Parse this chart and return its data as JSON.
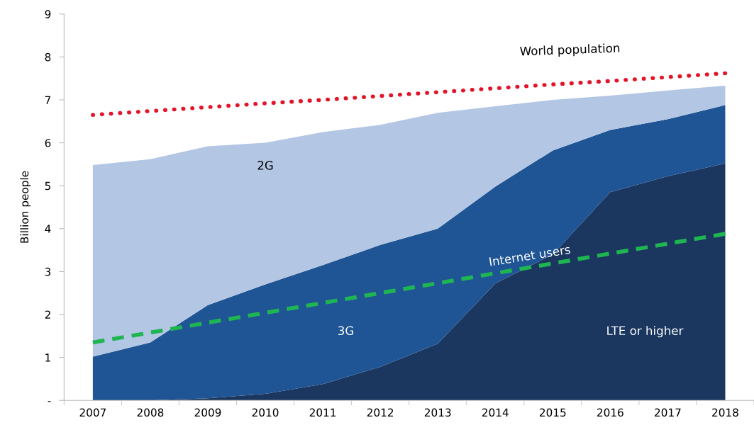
{
  "chart_data": {
    "type": "area",
    "stacked": true,
    "ylabel": "Billion people",
    "categories": [
      "2007",
      "2008",
      "2009",
      "2010",
      "2011",
      "2012",
      "2013",
      "2014",
      "2015",
      "2016",
      "2017",
      "2018"
    ],
    "series": [
      {
        "name": "LTE or higher",
        "color": "#1b375f",
        "values": [
          0,
          0,
          0.05,
          0.15,
          0.38,
          0.78,
          1.32,
          2.72,
          3.4,
          4.85,
          5.22,
          5.52
        ]
      },
      {
        "name": "3G",
        "color": "#1f5595",
        "values": [
          1.02,
          1.35,
          2.17,
          2.55,
          2.77,
          2.84,
          2.68,
          2.26,
          2.42,
          1.45,
          1.33,
          1.36
        ]
      },
      {
        "name": "2G",
        "color": "#b3c6e4",
        "values": [
          4.46,
          4.27,
          3.7,
          3.3,
          3.1,
          2.8,
          2.7,
          1.87,
          1.18,
          0.8,
          0.67,
          0.45
        ]
      },
      {
        "name": "World population",
        "type": "line",
        "line_style": "dotted",
        "color": "#e3142a",
        "values": [
          6.65,
          6.74,
          6.83,
          6.92,
          7.0,
          7.09,
          7.18,
          7.27,
          7.36,
          7.44,
          7.53,
          7.62
        ]
      },
      {
        "name": "Internet users",
        "type": "line",
        "line_style": "dashed",
        "color": "#1fb552",
        "values": [
          1.35,
          1.58,
          1.81,
          2.04,
          2.27,
          2.5,
          2.73,
          2.96,
          3.19,
          3.42,
          3.65,
          3.88
        ]
      }
    ],
    "ylim": [
      0,
      9
    ],
    "yticks": [
      {
        "value": 0,
        "label": "-"
      },
      1,
      2,
      3,
      4,
      5,
      6,
      7,
      8,
      9
    ],
    "grid": false,
    "legend": false
  }
}
